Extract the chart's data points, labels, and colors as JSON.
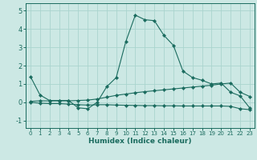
{
  "xlabel": "Humidex (Indice chaleur)",
  "bg_color": "#cce8e4",
  "line_color": "#1a6b5e",
  "grid_color": "#aad4ce",
  "xlim": [
    -0.5,
    23.5
  ],
  "ylim": [
    -1.4,
    5.4
  ],
  "xticks": [
    0,
    1,
    2,
    3,
    4,
    5,
    6,
    7,
    8,
    9,
    10,
    11,
    12,
    13,
    14,
    15,
    16,
    17,
    18,
    19,
    20,
    21,
    22,
    23
  ],
  "yticks": [
    -1,
    0,
    1,
    2,
    3,
    4,
    5
  ],
  "line1_x": [
    0,
    1,
    2,
    3,
    4,
    5,
    6,
    7,
    8,
    9,
    10,
    11,
    12,
    13,
    14,
    15,
    16,
    17,
    18,
    19,
    20,
    21,
    22,
    23
  ],
  "line1_y": [
    1.4,
    0.4,
    0.1,
    0.1,
    0.1,
    -0.3,
    -0.35,
    0.0,
    0.85,
    1.35,
    3.3,
    4.75,
    4.5,
    4.45,
    3.65,
    3.1,
    1.7,
    1.35,
    1.2,
    1.0,
    1.05,
    0.55,
    0.35,
    -0.3
  ],
  "line2_x": [
    0,
    1,
    2,
    3,
    4,
    5,
    6,
    7,
    8,
    9,
    10,
    11,
    12,
    13,
    14,
    15,
    16,
    17,
    18,
    19,
    20,
    21,
    22,
    23
  ],
  "line2_y": [
    0.05,
    0.08,
    0.08,
    0.08,
    0.08,
    0.1,
    0.12,
    0.18,
    0.28,
    0.38,
    0.45,
    0.52,
    0.58,
    0.63,
    0.68,
    0.73,
    0.78,
    0.83,
    0.88,
    0.93,
    1.0,
    1.05,
    0.55,
    0.32
  ],
  "line3_x": [
    0,
    1,
    2,
    3,
    4,
    5,
    6,
    7,
    8,
    9,
    10,
    11,
    12,
    13,
    14,
    15,
    16,
    17,
    18,
    19,
    20,
    21,
    22,
    23
  ],
  "line3_y": [
    0.0,
    -0.05,
    -0.07,
    -0.07,
    -0.1,
    -0.13,
    -0.15,
    -0.13,
    -0.13,
    -0.15,
    -0.16,
    -0.17,
    -0.18,
    -0.18,
    -0.19,
    -0.19,
    -0.2,
    -0.2,
    -0.2,
    -0.2,
    -0.2,
    -0.22,
    -0.35,
    -0.4
  ]
}
